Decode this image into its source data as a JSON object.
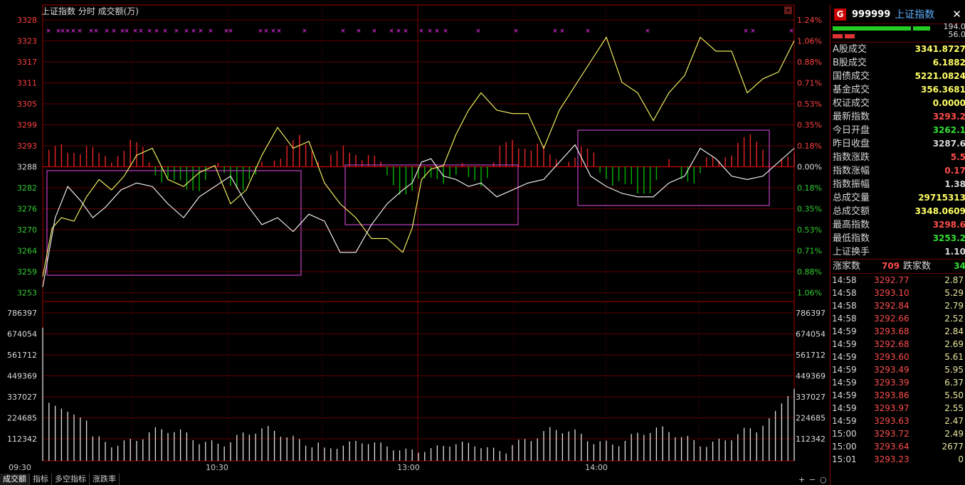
{
  "top_label": "上证指数   分时  成交额(万)",
  "price_axis": {
    "left": [
      "3328",
      "3323",
      "3317",
      "3311",
      "3305",
      "3299",
      "3293",
      "3288",
      "3282",
      "3276",
      "3270",
      "3264",
      "3259",
      "3253"
    ],
    "right": [
      "1.24%",
      "1.06%",
      "0.88%",
      "0.71%",
      "0.53%",
      "0.35%",
      "0.18%",
      "0.00%",
      "0.18%",
      "0.35%",
      "0.53%",
      "0.71%",
      "0.88%",
      "1.06%"
    ],
    "min": 3250.5,
    "max": 3329
  },
  "volume_axis": {
    "labels": [
      "786397",
      "674054",
      "561712",
      "449369",
      "337027",
      "224685",
      "112342"
    ],
    "max": 800000
  },
  "time_labels": [
    "09:30",
    "10:30",
    "13:00",
    "14:00"
  ],
  "bottom_tabs": [
    "成交额",
    "指标",
    "多空指标",
    "涨跌率"
  ],
  "colors": {
    "up": "#ff3333",
    "down": "#00cc00",
    "line_white": "#ffffff",
    "line_yellow": "#ffff66",
    "grid": "#8b0000",
    "box": "#c040c0"
  },
  "chart_data": {
    "type": "line",
    "series": [
      {
        "x": [
          0,
          3,
          6,
          10,
          14,
          18,
          22,
          26,
          30,
          35,
          40,
          45,
          50,
          55,
          60,
          65,
          70,
          75,
          80,
          85,
          90,
          95,
          100,
          105,
          110,
          115,
          118,
          121,
          124,
          128,
          132,
          136,
          140,
          145,
          150,
          155,
          160,
          165,
          170,
          175,
          180,
          185,
          190,
          195,
          200,
          205,
          210,
          215,
          220,
          225,
          230,
          235,
          240
        ],
        "values": [
          3255,
          3269,
          3272,
          3271,
          3278,
          3283,
          3280,
          3284,
          3290,
          3292,
          3283,
          3281,
          3285,
          3287,
          3276,
          3280,
          3290,
          3298,
          3292,
          3294,
          3282,
          3276,
          3272,
          3266,
          3266,
          3262,
          3269,
          3283,
          3286,
          3287,
          3296,
          3303,
          3308,
          3303,
          3302,
          3302,
          3292,
          3303,
          3310,
          3317,
          3324,
          3311,
          3308,
          3300,
          3308,
          3313,
          3324,
          3320,
          3320,
          3308,
          3312,
          3314,
          3323
        ]
      },
      {
        "x": [
          0,
          4,
          8,
          12,
          16,
          20,
          25,
          30,
          35,
          40,
          45,
          50,
          55,
          60,
          65,
          70,
          75,
          80,
          85,
          90,
          95,
          100,
          105,
          110,
          115,
          118,
          121,
          124,
          128,
          132,
          136,
          140,
          145,
          150,
          155,
          160,
          165,
          170,
          175,
          180,
          185,
          190,
          195,
          200,
          205,
          210,
          215,
          220,
          225,
          230,
          235,
          240
        ],
        "values": [
          3252,
          3272,
          3281,
          3277,
          3272,
          3275,
          3280,
          3282,
          3281,
          3276,
          3272,
          3278,
          3281,
          3284,
          3276,
          3270,
          3272,
          3268,
          3273,
          3271,
          3262,
          3262,
          3270,
          3276,
          3280,
          3282,
          3288,
          3289,
          3284,
          3283,
          3281,
          3282,
          3278,
          3280,
          3282,
          3283,
          3288,
          3293,
          3284,
          3281,
          3279,
          3278,
          3278,
          3282,
          3284,
          3292,
          3289,
          3284,
          3283,
          3284,
          3288,
          3292
        ]
      }
    ],
    "volume": {
      "approx_max": 720000
    }
  },
  "markers": "×",
  "right_panel": {
    "badge": "G",
    "code": "999999",
    "name": "上证指数",
    "close": "✕",
    "bar1_value": "194.0",
    "bar2_value": "56.0",
    "rows": [
      {
        "label": "A股成交",
        "value": "3341.8727",
        "color": "#ffff66"
      },
      {
        "label": "B股成交",
        "value": "6.1882",
        "color": "#ffff66"
      },
      {
        "label": "国债成交",
        "value": "5221.0824",
        "color": "#ffff66"
      },
      {
        "label": "基金成交",
        "value": "356.3681",
        "color": "#ffff66"
      },
      {
        "label": "权证成交",
        "value": "0.0000",
        "color": "#ffff66"
      },
      {
        "label": "最新指数",
        "value": "3293.2",
        "color": "#ff4d4d"
      },
      {
        "label": "今日开盘",
        "value": "3262.1",
        "color": "#33dd33"
      },
      {
        "label": "昨日收盘",
        "value": "3287.6",
        "color": "#d8d8d8"
      },
      {
        "label": "指数涨跌",
        "value": "5.5",
        "color": "#ff4d4d"
      },
      {
        "label": "指数涨幅",
        "value": "0.17",
        "color": "#ff4d4d"
      },
      {
        "label": "指数振幅",
        "value": "1.38",
        "color": "#d8d8d8"
      },
      {
        "label": "总成交量",
        "value": "29715313",
        "color": "#ffff66"
      },
      {
        "label": "总成交额",
        "value": "3348.0609",
        "color": "#ffff66"
      },
      {
        "label": "最高指数",
        "value": "3298.6",
        "color": "#ff4d4d"
      },
      {
        "label": "最低指数",
        "value": "3253.2",
        "color": "#33dd33"
      },
      {
        "label": "上证换手",
        "value": "1.10",
        "color": "#d8d8d8"
      }
    ],
    "up_down": {
      "up_label": "涨家数",
      "up_count": "709",
      "down_label": "跌家数",
      "down_count": "34"
    },
    "ticks": [
      {
        "time": "14:58",
        "price": "3292.77",
        "vol": "2.87"
      },
      {
        "time": "14:58",
        "price": "3293.10",
        "vol": "5.29"
      },
      {
        "time": "14:58",
        "price": "3292.84",
        "vol": "2.79"
      },
      {
        "time": "14:58",
        "price": "3292.66",
        "vol": "2.52"
      },
      {
        "time": "14:59",
        "price": "3293.68",
        "vol": "2.84"
      },
      {
        "time": "14:59",
        "price": "3292.68",
        "vol": "2.69"
      },
      {
        "time": "14:59",
        "price": "3293.60",
        "vol": "5.61"
      },
      {
        "time": "14:59",
        "price": "3293.49",
        "vol": "5.95"
      },
      {
        "time": "14:59",
        "price": "3293.39",
        "vol": "6.37"
      },
      {
        "time": "14:59",
        "price": "3293.86",
        "vol": "5.50"
      },
      {
        "time": "14:59",
        "price": "3293.97",
        "vol": "2.55"
      },
      {
        "time": "14:59",
        "price": "3293.63",
        "vol": "2.47"
      },
      {
        "time": "15:00",
        "price": "3293.72",
        "vol": "2.49"
      },
      {
        "time": "15:00",
        "price": "3293.64",
        "vol": "2677"
      },
      {
        "time": "15:01",
        "price": "3293.23",
        "vol": "0"
      }
    ]
  }
}
